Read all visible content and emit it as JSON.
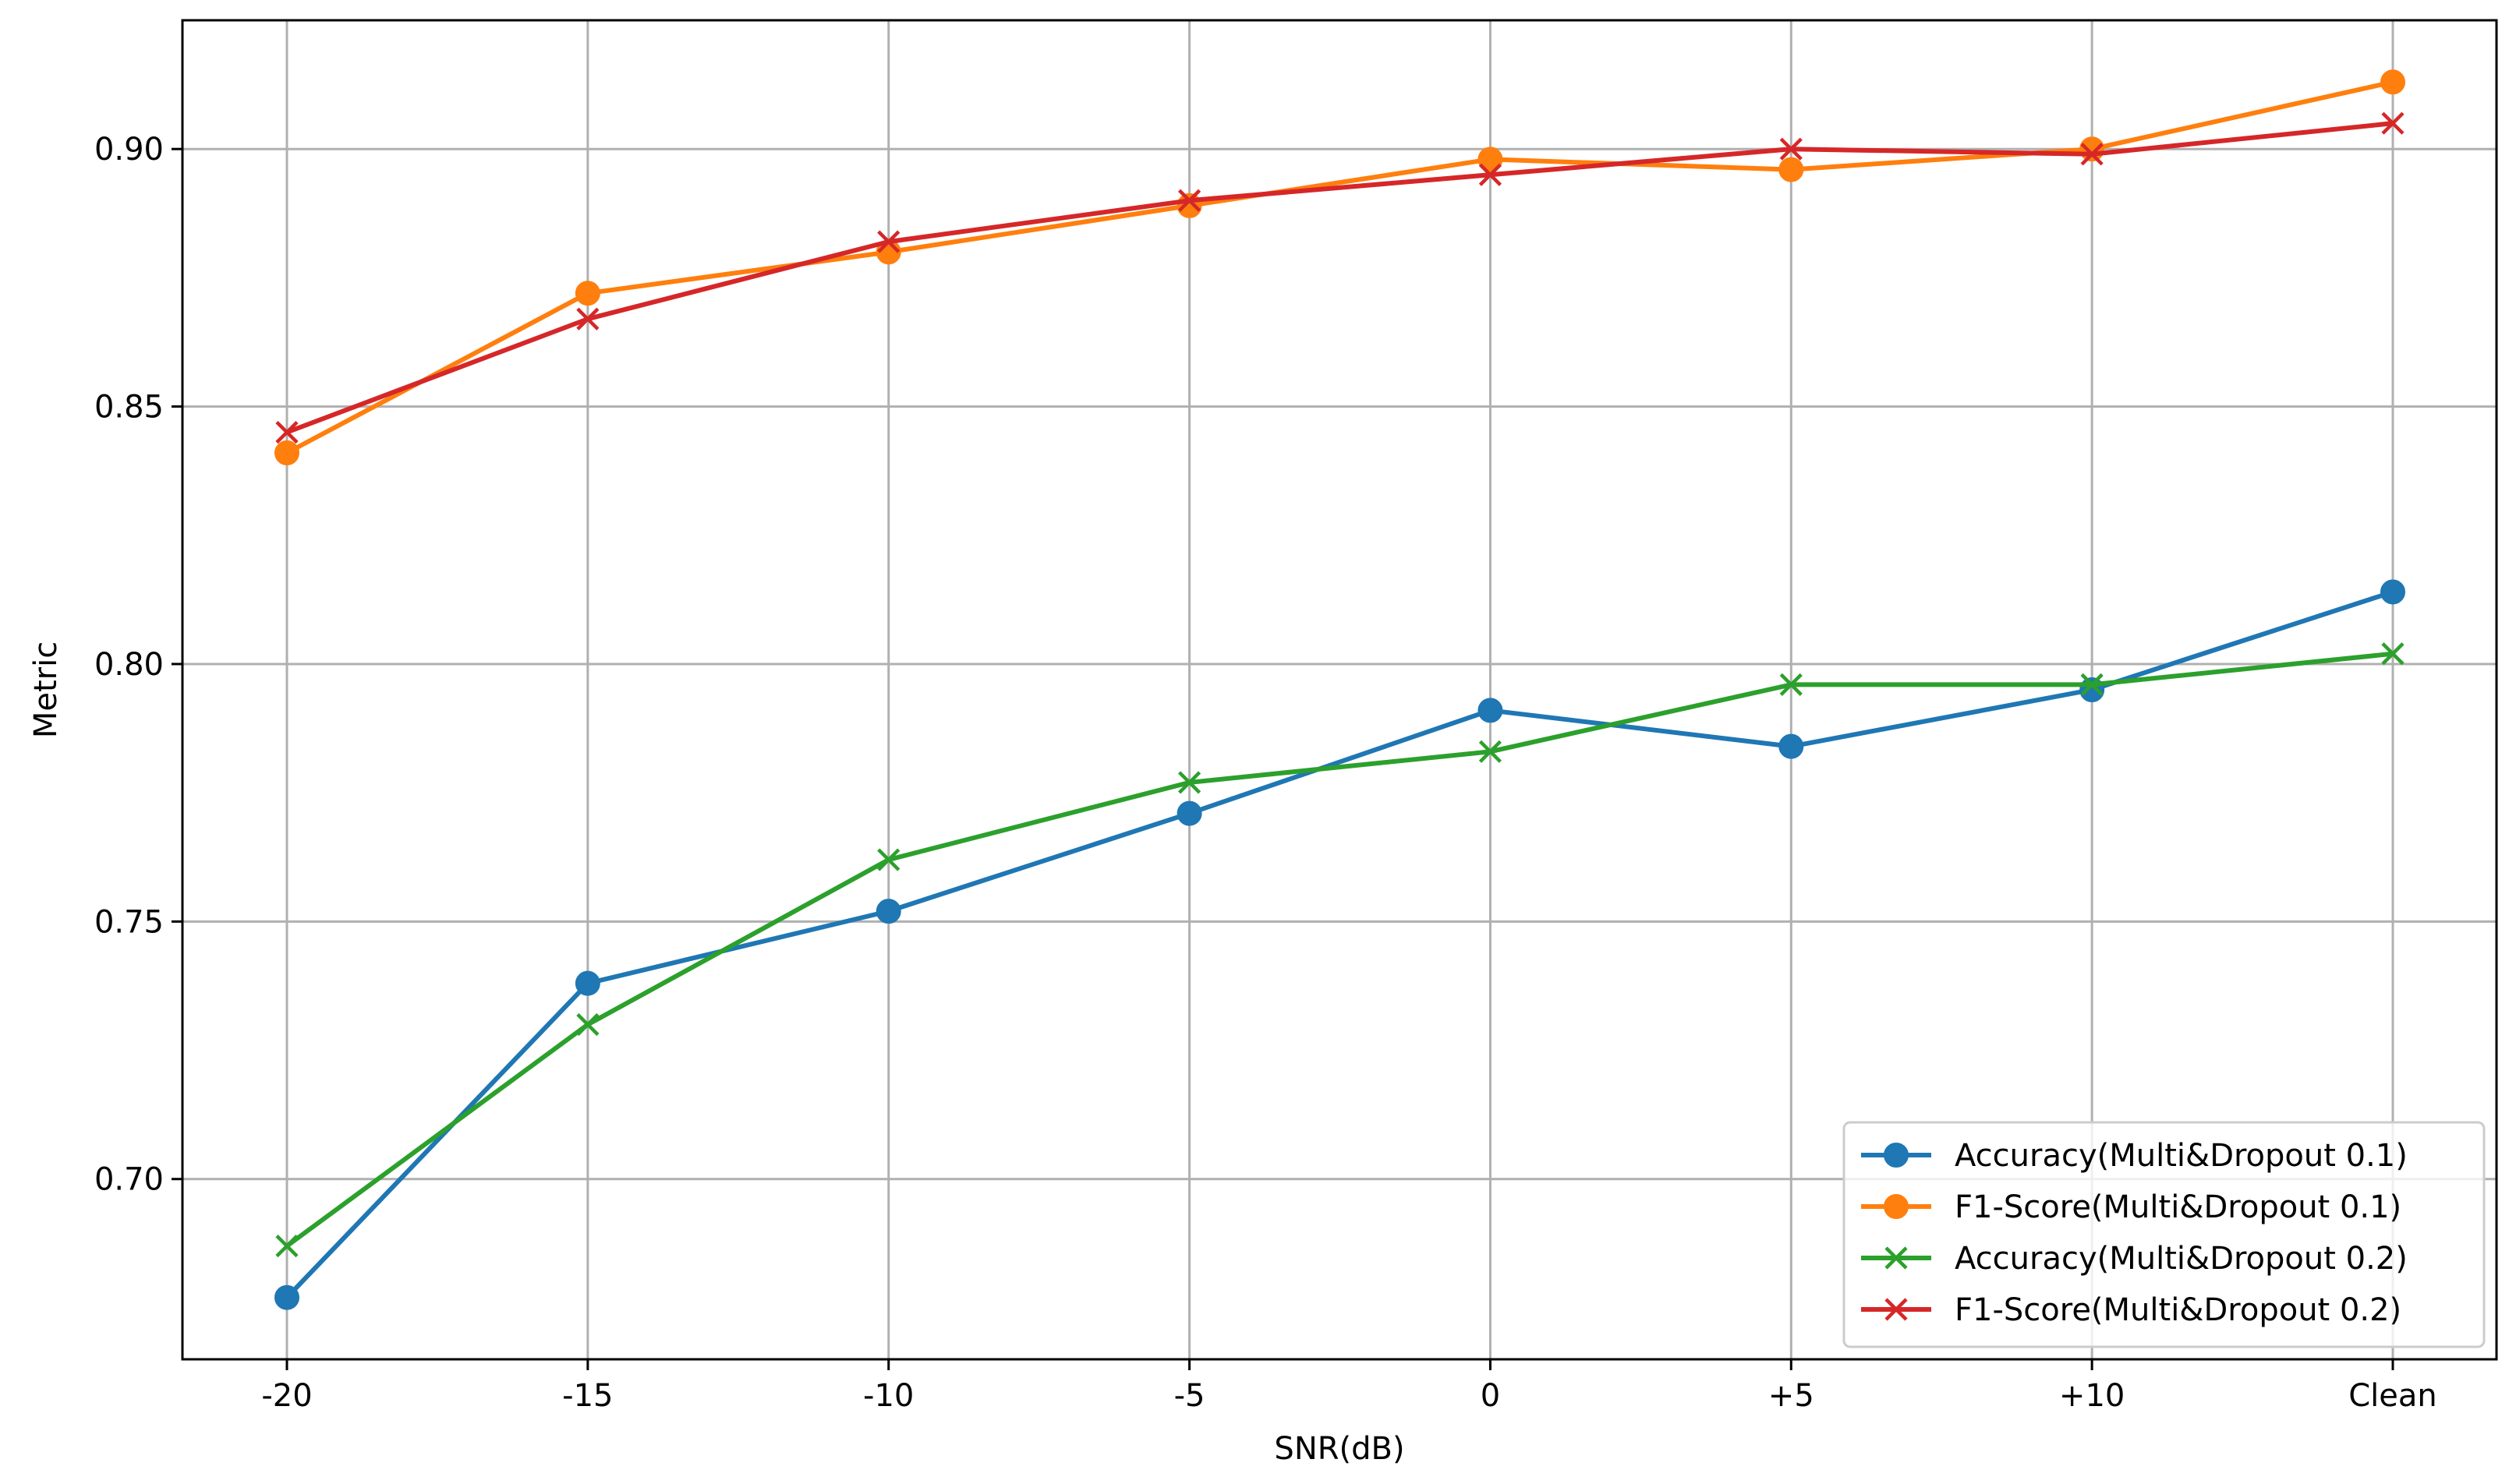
{
  "chart_data": {
    "type": "line",
    "title": "",
    "xlabel": "SNR(dB)",
    "ylabel": "Metric",
    "categories": [
      "-20",
      "-15",
      "-10",
      "-5",
      "0",
      "+5",
      "+10",
      "Clean"
    ],
    "ylim": [
      0.665,
      0.925
    ],
    "yticks": [
      "0.70",
      "0.75",
      "0.80",
      "0.85",
      "0.90"
    ],
    "grid": true,
    "legend_position": "lower-right",
    "series": [
      {
        "name": "Accuracy(Multi&Dropout 0.1)",
        "color": "#1f77b4",
        "marker": "circle",
        "values": [
          0.677,
          0.738,
          0.752,
          0.771,
          0.791,
          0.784,
          0.795,
          0.814
        ]
      },
      {
        "name": "F1-Score(Multi&Dropout 0.1)",
        "color": "#ff7f0e",
        "marker": "circle",
        "values": [
          0.841,
          0.872,
          0.88,
          0.889,
          0.898,
          0.896,
          0.9,
          0.913
        ]
      },
      {
        "name": "Accuracy(Multi&Dropout 0.2)",
        "color": "#2ca02c",
        "marker": "x",
        "values": [
          0.687,
          0.73,
          0.762,
          0.777,
          0.783,
          0.796,
          0.796,
          0.802
        ]
      },
      {
        "name": "F1-Score(Multi&Dropout 0.2)",
        "color": "#d62728",
        "marker": "x",
        "values": [
          0.845,
          0.867,
          0.882,
          0.89,
          0.895,
          0.9,
          0.899,
          0.905
        ]
      }
    ]
  }
}
